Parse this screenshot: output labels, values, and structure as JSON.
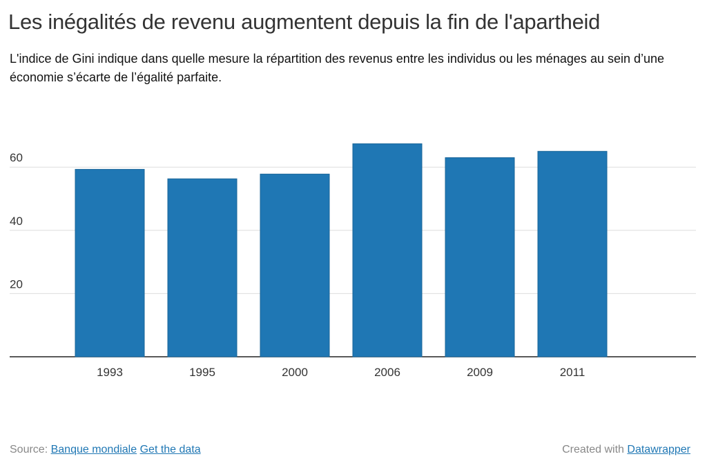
{
  "chart_data": {
    "type": "bar",
    "title": "Les inégalités de revenu augmentent depuis la fin de l'apartheid",
    "subtitle": "L'indice de Gini indique dans quelle mesure la répartition des revenus entre les individus ou les ménages au sein d’une économie s’écarte de l’égalité parfaite.",
    "categories": [
      "1993",
      "1995",
      "2000",
      "2006",
      "2009",
      "2011"
    ],
    "values": [
      59.3,
      56.3,
      57.8,
      67.4,
      63.0,
      65.0
    ],
    "yticks": [
      20,
      40,
      60
    ],
    "ylim": [
      0,
      70
    ],
    "grid": true,
    "bar_color": "#1f77b4",
    "xlabel": "",
    "ylabel": ""
  },
  "footer": {
    "source_label": "Source:",
    "source_link": "Banque mondiale",
    "data_link": "Get the data",
    "created_label": "Created with",
    "created_link": "Datawrapper"
  },
  "colors": {
    "link": "#1f77b4",
    "grid": "#dddddd",
    "axis": "#222222"
  }
}
